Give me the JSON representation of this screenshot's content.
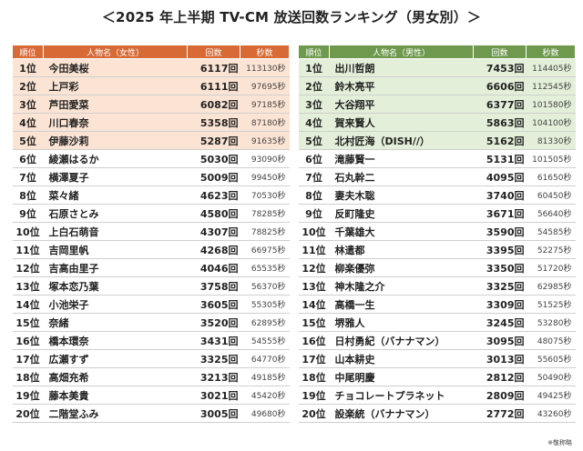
{
  "title": "＜2025 年上半期 TV-CM 放送回数ランキング（男女別）＞",
  "note": "※敬称略",
  "female": {
    "headers": [
      "順位",
      "人物名（女性）",
      "回数",
      "秒数"
    ],
    "rows": [
      {
        "rank": "1位",
        "name": "今田美桜",
        "count": "6117回",
        "sec": "113130秒"
      },
      {
        "rank": "2位",
        "name": "上戸彩",
        "count": "6111回",
        "sec": "97695秒"
      },
      {
        "rank": "3位",
        "name": "芦田愛菜",
        "count": "6082回",
        "sec": "97185秒"
      },
      {
        "rank": "4位",
        "name": "川口春奈",
        "count": "5358回",
        "sec": "87180秒"
      },
      {
        "rank": "5位",
        "name": "伊藤沙莉",
        "count": "5287回",
        "sec": "91635秒"
      },
      {
        "rank": "6位",
        "name": "綾瀬はるか",
        "count": "5030回",
        "sec": "93090秒"
      },
      {
        "rank": "7位",
        "name": "横澤夏子",
        "count": "5009回",
        "sec": "99450秒"
      },
      {
        "rank": "8位",
        "name": "菜々緒",
        "count": "4623回",
        "sec": "70530秒"
      },
      {
        "rank": "9位",
        "name": "石原さとみ",
        "count": "4580回",
        "sec": "78285秒"
      },
      {
        "rank": "10位",
        "name": "上白石萌音",
        "count": "4307回",
        "sec": "78825秒"
      },
      {
        "rank": "11位",
        "name": "吉岡里帆",
        "count": "4268回",
        "sec": "66975秒"
      },
      {
        "rank": "12位",
        "name": "吉高由里子",
        "count": "4046回",
        "sec": "65535秒"
      },
      {
        "rank": "13位",
        "name": "塚本恋乃葉",
        "count": "3758回",
        "sec": "56370秒"
      },
      {
        "rank": "14位",
        "name": "小池栄子",
        "count": "3605回",
        "sec": "55305秒"
      },
      {
        "rank": "15位",
        "name": "奈緒",
        "count": "3520回",
        "sec": "62895秒"
      },
      {
        "rank": "16位",
        "name": "橋本環奈",
        "count": "3431回",
        "sec": "54555秒"
      },
      {
        "rank": "17位",
        "name": "広瀬すず",
        "count": "3325回",
        "sec": "64770秒"
      },
      {
        "rank": "18位",
        "name": "高畑充希",
        "count": "3213回",
        "sec": "49185秒"
      },
      {
        "rank": "19位",
        "name": "藤本美貴",
        "count": "3021回",
        "sec": "45420秒"
      },
      {
        "rank": "20位",
        "name": "二階堂ふみ",
        "count": "3005回",
        "sec": "49680秒"
      }
    ]
  },
  "male": {
    "headers": [
      "順位",
      "人物名（男性）",
      "回数",
      "秒数"
    ],
    "rows": [
      {
        "rank": "1位",
        "name": "出川哲朗",
        "count": "7453回",
        "sec": "114405秒"
      },
      {
        "rank": "2位",
        "name": "鈴木亮平",
        "count": "6606回",
        "sec": "112545秒"
      },
      {
        "rank": "3位",
        "name": "大谷翔平",
        "count": "6377回",
        "sec": "101580秒"
      },
      {
        "rank": "4位",
        "name": "賀来賢人",
        "count": "5863回",
        "sec": "104100秒"
      },
      {
        "rank": "5位",
        "name": "北村匠海（DISH//）",
        "count": "5162回",
        "sec": "81330秒"
      },
      {
        "rank": "6位",
        "name": "滝藤賢一",
        "count": "5131回",
        "sec": "101505秒"
      },
      {
        "rank": "7位",
        "name": "石丸幹二",
        "count": "4095回",
        "sec": "61650秒"
      },
      {
        "rank": "8位",
        "name": "妻夫木聡",
        "count": "3740回",
        "sec": "60450秒"
      },
      {
        "rank": "9位",
        "name": "反町隆史",
        "count": "3671回",
        "sec": "56640秒"
      },
      {
        "rank": "10位",
        "name": "千葉雄大",
        "count": "3590回",
        "sec": "54585秒"
      },
      {
        "rank": "11位",
        "name": "林遣都",
        "count": "3395回",
        "sec": "52275秒"
      },
      {
        "rank": "12位",
        "name": "柳楽優弥",
        "count": "3350回",
        "sec": "51720秒"
      },
      {
        "rank": "13位",
        "name": "神木隆之介",
        "count": "3325回",
        "sec": "62985秒"
      },
      {
        "rank": "14位",
        "name": "高橋一生",
        "count": "3309回",
        "sec": "51525秒"
      },
      {
        "rank": "15位",
        "name": "堺雅人",
        "count": "3245回",
        "sec": "53280秒"
      },
      {
        "rank": "16位",
        "name": "日村勇紀（バナナマン）",
        "count": "3095回",
        "sec": "48075秒"
      },
      {
        "rank": "17位",
        "name": "山本耕史",
        "count": "3013回",
        "sec": "55605秒"
      },
      {
        "rank": "18位",
        "name": "中尾明慶",
        "count": "2812回",
        "sec": "50490秒"
      },
      {
        "rank": "19位",
        "name": "チョコレートプラネット",
        "count": "2809回",
        "sec": "49425秒"
      },
      {
        "rank": "20位",
        "name": "設楽統（バナナマン）",
        "count": "2772回",
        "sec": "43260秒"
      }
    ]
  },
  "colors": {
    "female_header": "#d86a35",
    "female_highlight": "#fce4d4",
    "male_header": "#6f9a4e",
    "male_highlight": "#e3efd9"
  }
}
